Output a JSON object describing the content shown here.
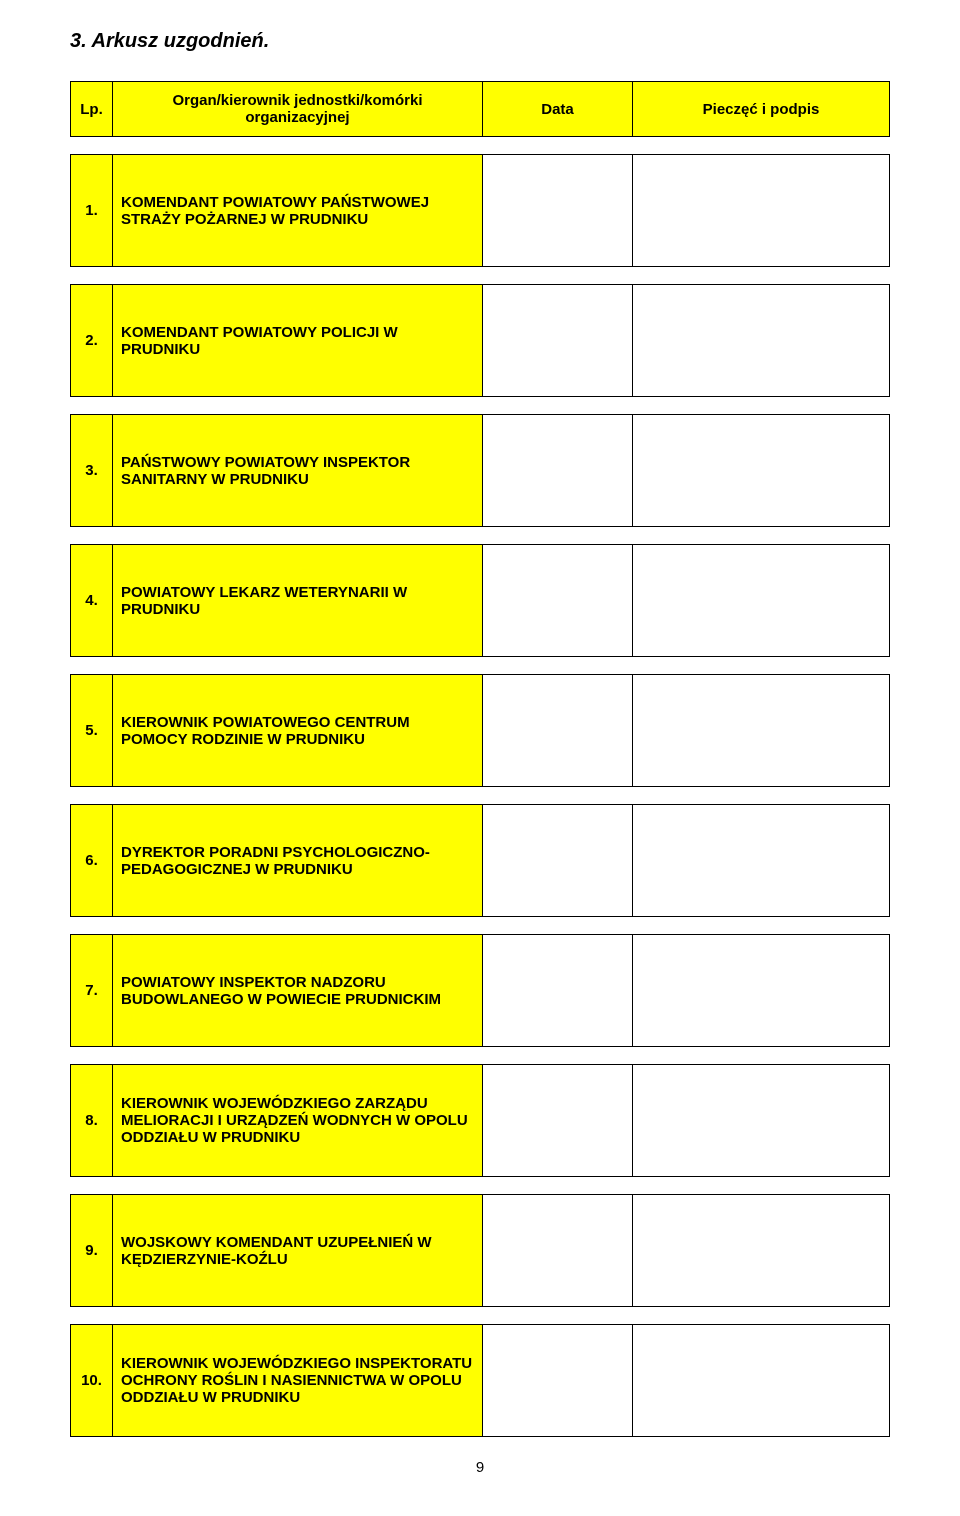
{
  "section_title": "3. Arkusz uzgodnień.",
  "page_number": "9",
  "colors": {
    "highlight": "#ffff00",
    "border": "#000000",
    "background": "#ffffff",
    "text": "#000000"
  },
  "table": {
    "headers": {
      "lp": "Lp.",
      "organ": "Organ/kierownik jednostki/komórki organizacyjnej",
      "data": "Data",
      "stamp": "Pieczęć i podpis"
    },
    "rows": [
      {
        "lp": "1.",
        "organ": "KOMENDANT POWIATOWY PAŃSTWOWEJ STRAŻY POŻARNEJ W PRUDNIKU"
      },
      {
        "lp": "2.",
        "organ": "KOMENDANT POWIATOWY POLICJI W PRUDNIKU"
      },
      {
        "lp": "3.",
        "organ": "PAŃSTWOWY POWIATOWY INSPEKTOR SANITARNY W PRUDNIKU"
      },
      {
        "lp": "4.",
        "organ": "POWIATOWY LEKARZ WETERYNARII W PRUDNIKU"
      },
      {
        "lp": "5.",
        "organ": "KIEROWNIK POWIATOWEGO CENTRUM POMOCY RODZINIE W PRUDNIKU"
      },
      {
        "lp": "6.",
        "organ": "DYREKTOR PORADNI PSYCHOLOGICZNO-PEDAGOGICZNEJ W PRUDNIKU"
      },
      {
        "lp": "7.",
        "organ": "POWIATOWY INSPEKTOR NADZORU BUDOWLANEGO W POWIECIE PRUDNICKIM"
      },
      {
        "lp": "8.",
        "organ": "KIEROWNIK WOJEWÓDZKIEGO ZARZĄDU MELIORACJI I URZĄDZEŃ WODNYCH W OPOLU ODDZIAŁU W PRUDNIKU"
      },
      {
        "lp": "9.",
        "organ": "WOJSKOWY KOMENDANT UZUPEŁNIEŃ W KĘDZIERZYNIE-KOŹLU"
      },
      {
        "lp": "10.",
        "organ": "KIEROWNIK WOJEWÓDZKIEGO INSPEKTORATU OCHRONY ROŚLIN I NASIENNICTWA W OPOLU ODDZIAŁU W PRUDNIKU"
      }
    ]
  }
}
